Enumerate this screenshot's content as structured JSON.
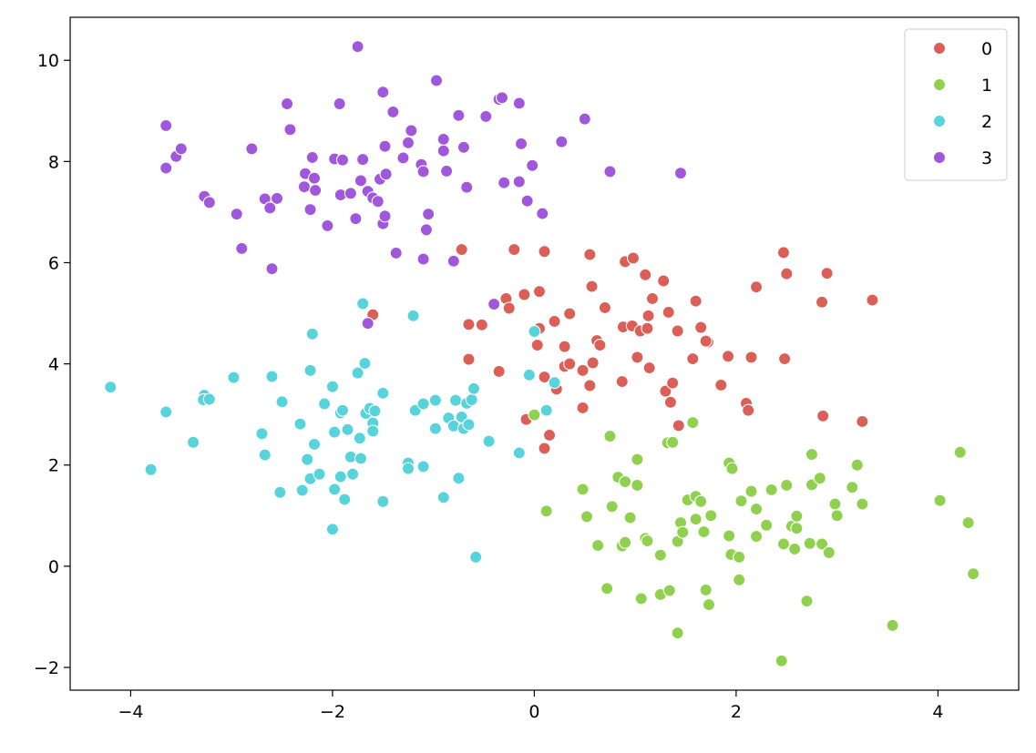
{
  "chart_data": {
    "type": "scatter",
    "xlim": [
      -4.6,
      4.8
    ],
    "ylim": [
      -2.45,
      10.85
    ],
    "x_ticks": [
      -4,
      -2,
      0,
      2,
      4
    ],
    "y_ticks": [
      -2,
      0,
      2,
      4,
      6,
      8,
      10
    ],
    "x_tick_labels": [
      "−4",
      "−2",
      "0",
      "2",
      "4"
    ],
    "y_tick_labels": [
      "−2",
      "0",
      "2",
      "4",
      "6",
      "8",
      "10"
    ],
    "grid": false,
    "legend_position": "top-right",
    "series": [
      {
        "name": "0",
        "color": "#db5f57",
        "points": [
          [
            -1.6,
            4.97
          ],
          [
            -0.72,
            6.26
          ],
          [
            -0.65,
            4.78
          ],
          [
            -0.52,
            4.77
          ],
          [
            -0.65,
            4.09
          ],
          [
            -0.35,
            3.85
          ],
          [
            -0.28,
            5.29
          ],
          [
            -0.25,
            5.1
          ],
          [
            -0.2,
            6.26
          ],
          [
            -0.1,
            5.37
          ],
          [
            0.05,
            5.43
          ],
          [
            0.1,
            6.22
          ],
          [
            0.03,
            4.37
          ],
          [
            0.05,
            4.7
          ],
          [
            0.1,
            3.74
          ],
          [
            0.2,
            4.84
          ],
          [
            0.22,
            3.5
          ],
          [
            0.3,
            4.34
          ],
          [
            0.35,
            4.99
          ],
          [
            0.3,
            3.95
          ],
          [
            0.35,
            4.0
          ],
          [
            0.48,
            3.87
          ],
          [
            0.48,
            3.13
          ],
          [
            0.55,
            6.16
          ],
          [
            0.57,
            5.53
          ],
          [
            0.55,
            3.57
          ],
          [
            0.58,
            4.02
          ],
          [
            0.62,
            4.46
          ],
          [
            0.65,
            4.37
          ],
          [
            0.7,
            5.11
          ],
          [
            0.88,
            4.73
          ],
          [
            0.9,
            6.02
          ],
          [
            0.98,
            6.09
          ],
          [
            0.97,
            4.75
          ],
          [
            0.87,
            3.65
          ],
          [
            1.02,
            4.13
          ],
          [
            1.05,
            4.65
          ],
          [
            1.1,
            5.76
          ],
          [
            1.12,
            4.7
          ],
          [
            1.13,
            4.95
          ],
          [
            1.17,
            5.29
          ],
          [
            1.14,
            3.92
          ],
          [
            1.28,
            5.64
          ],
          [
            1.3,
            3.46
          ],
          [
            1.33,
            5.02
          ],
          [
            1.35,
            3.24
          ],
          [
            1.37,
            3.62
          ],
          [
            1.42,
            4.65
          ],
          [
            1.43,
            2.78
          ],
          [
            1.57,
            4.1
          ],
          [
            1.6,
            5.24
          ],
          [
            1.65,
            4.72
          ],
          [
            1.72,
            4.43
          ],
          [
            1.7,
            4.45
          ],
          [
            1.85,
            3.58
          ],
          [
            1.92,
            4.15
          ],
          [
            2.1,
            3.22
          ],
          [
            2.12,
            3.08
          ],
          [
            2.15,
            4.13
          ],
          [
            2.2,
            5.52
          ],
          [
            2.47,
            6.2
          ],
          [
            2.5,
            5.78
          ],
          [
            2.48,
            4.1
          ],
          [
            2.9,
            5.79
          ],
          [
            2.85,
            5.22
          ],
          [
            2.86,
            2.97
          ],
          [
            3.25,
            2.86
          ],
          [
            3.35,
            5.26
          ],
          [
            -0.08,
            2.9
          ],
          [
            0.1,
            2.33
          ],
          [
            0.15,
            2.59
          ]
        ]
      },
      {
        "name": "1",
        "color": "#8fd14f",
        "points": [
          [
            0.0,
            2.99
          ],
          [
            0.12,
            1.09
          ],
          [
            0.48,
            1.52
          ],
          [
            0.52,
            0.98
          ],
          [
            0.63,
            0.41
          ],
          [
            0.72,
            -0.44
          ],
          [
            0.75,
            2.57
          ],
          [
            0.77,
            1.18
          ],
          [
            0.83,
            1.76
          ],
          [
            0.87,
            0.4
          ],
          [
            0.9,
            0.47
          ],
          [
            0.9,
            1.67
          ],
          [
            0.95,
            0.96
          ],
          [
            1.02,
            2.11
          ],
          [
            1.02,
            1.6
          ],
          [
            1.06,
            -0.64
          ],
          [
            1.1,
            0.55
          ],
          [
            1.12,
            0.5
          ],
          [
            1.25,
            0.22
          ],
          [
            1.25,
            -0.56
          ],
          [
            1.32,
            2.44
          ],
          [
            1.34,
            -0.48
          ],
          [
            1.37,
            2.45
          ],
          [
            1.42,
            -1.32
          ],
          [
            1.42,
            0.49
          ],
          [
            1.45,
            0.86
          ],
          [
            1.47,
            0.67
          ],
          [
            1.52,
            1.31
          ],
          [
            1.57,
            2.84
          ],
          [
            1.6,
            0.93
          ],
          [
            1.6,
            1.38
          ],
          [
            1.65,
            1.28
          ],
          [
            1.68,
            0.68
          ],
          [
            1.7,
            -0.47
          ],
          [
            1.73,
            -0.76
          ],
          [
            1.75,
            1.0
          ],
          [
            1.93,
            2.04
          ],
          [
            1.93,
            0.6
          ],
          [
            1.95,
            0.23
          ],
          [
            1.96,
            1.93
          ],
          [
            2.03,
            0.18
          ],
          [
            2.03,
            -0.27
          ],
          [
            2.05,
            1.29
          ],
          [
            2.15,
            1.48
          ],
          [
            2.2,
            1.13
          ],
          [
            2.2,
            0.59
          ],
          [
            2.3,
            0.81
          ],
          [
            2.35,
            1.51
          ],
          [
            2.45,
            -1.87
          ],
          [
            2.47,
            0.44
          ],
          [
            2.5,
            1.6
          ],
          [
            2.55,
            0.79
          ],
          [
            2.6,
            0.75
          ],
          [
            2.6,
            0.99
          ],
          [
            2.58,
            0.34
          ],
          [
            2.7,
            -0.69
          ],
          [
            2.73,
            0.45
          ],
          [
            2.75,
            1.61
          ],
          [
            2.75,
            2.21
          ],
          [
            2.83,
            1.74
          ],
          [
            2.85,
            0.44
          ],
          [
            2.92,
            0.27
          ],
          [
            2.98,
            1.23
          ],
          [
            3.0,
            1.0
          ],
          [
            3.15,
            1.56
          ],
          [
            3.2,
            2.0
          ],
          [
            3.25,
            1.23
          ],
          [
            3.55,
            -1.17
          ],
          [
            4.02,
            1.3
          ],
          [
            4.22,
            2.25
          ],
          [
            4.3,
            0.86
          ],
          [
            4.35,
            -0.15
          ]
        ]
      },
      {
        "name": "2",
        "color": "#57d3db",
        "points": [
          [
            -4.2,
            3.54
          ],
          [
            -3.8,
            1.91
          ],
          [
            -3.65,
            3.05
          ],
          [
            -3.38,
            2.45
          ],
          [
            -3.27,
            3.38
          ],
          [
            -3.28,
            3.29
          ],
          [
            -3.22,
            3.3
          ],
          [
            -2.98,
            3.73
          ],
          [
            -2.7,
            2.62
          ],
          [
            -2.67,
            2.2
          ],
          [
            -2.6,
            3.75
          ],
          [
            -2.52,
            1.46
          ],
          [
            -2.5,
            3.25
          ],
          [
            -2.32,
            2.81
          ],
          [
            -2.3,
            1.5
          ],
          [
            -2.25,
            2.11
          ],
          [
            -2.22,
            3.87
          ],
          [
            -2.22,
            1.73
          ],
          [
            -2.2,
            4.59
          ],
          [
            -2.18,
            2.41
          ],
          [
            -2.13,
            1.82
          ],
          [
            -2.08,
            3.21
          ],
          [
            -2.0,
            3.55
          ],
          [
            -1.98,
            2.65
          ],
          [
            -1.98,
            1.52
          ],
          [
            -2.0,
            0.73
          ],
          [
            -1.92,
            3.03
          ],
          [
            -1.9,
            3.08
          ],
          [
            -1.92,
            1.77
          ],
          [
            -1.88,
            1.32
          ],
          [
            -1.85,
            2.7
          ],
          [
            -1.82,
            2.16
          ],
          [
            -1.8,
            1.82
          ],
          [
            -1.75,
            3.82
          ],
          [
            -1.72,
            2.13
          ],
          [
            -1.73,
            2.53
          ],
          [
            -1.7,
            5.19
          ],
          [
            -1.68,
            4.01
          ],
          [
            -1.67,
            3.02
          ],
          [
            -1.63,
            3.12
          ],
          [
            -1.6,
            2.83
          ],
          [
            -1.6,
            2.67
          ],
          [
            -1.58,
            3.07
          ],
          [
            -1.5,
            3.42
          ],
          [
            -1.5,
            1.28
          ],
          [
            -1.2,
            4.95
          ],
          [
            -1.18,
            3.08
          ],
          [
            -1.1,
            3.21
          ],
          [
            -1.1,
            1.97
          ],
          [
            -1.25,
            2.04
          ],
          [
            -1.25,
            1.93
          ],
          [
            -0.98,
            3.28
          ],
          [
            -0.98,
            2.72
          ],
          [
            -0.9,
            1.36
          ],
          [
            -0.85,
            2.93
          ],
          [
            -0.8,
            2.77
          ],
          [
            -0.78,
            3.28
          ],
          [
            -0.75,
            1.74
          ],
          [
            -0.72,
            2.95
          ],
          [
            -0.7,
            2.72
          ],
          [
            -0.67,
            3.22
          ],
          [
            -0.65,
            2.8
          ],
          [
            -0.62,
            3.29
          ],
          [
            -0.6,
            3.51
          ],
          [
            -0.58,
            0.18
          ],
          [
            -0.45,
            2.47
          ],
          [
            -0.15,
            2.24
          ],
          [
            -0.05,
            3.78
          ],
          [
            0.0,
            4.64
          ],
          [
            0.12,
            3.08
          ],
          [
            0.2,
            3.63
          ]
        ]
      },
      {
        "name": "3",
        "color": "#a157db",
        "points": [
          [
            -3.65,
            8.71
          ],
          [
            -3.65,
            7.87
          ],
          [
            -3.55,
            8.1
          ],
          [
            -3.5,
            8.25
          ],
          [
            -3.27,
            7.31
          ],
          [
            -3.22,
            7.19
          ],
          [
            -2.95,
            6.96
          ],
          [
            -2.9,
            6.28
          ],
          [
            -2.8,
            8.25
          ],
          [
            -2.67,
            7.26
          ],
          [
            -2.62,
            7.08
          ],
          [
            -2.6,
            5.88
          ],
          [
            -2.55,
            7.27
          ],
          [
            -2.45,
            9.14
          ],
          [
            -2.42,
            8.63
          ],
          [
            -2.28,
            7.5
          ],
          [
            -2.27,
            7.76
          ],
          [
            -2.22,
            7.05
          ],
          [
            -2.2,
            8.08
          ],
          [
            -2.18,
            7.67
          ],
          [
            -2.17,
            7.43
          ],
          [
            -2.05,
            6.73
          ],
          [
            -1.98,
            8.05
          ],
          [
            -1.93,
            9.14
          ],
          [
            -1.92,
            7.34
          ],
          [
            -1.9,
            8.03
          ],
          [
            -1.82,
            7.37
          ],
          [
            -1.77,
            6.87
          ],
          [
            -1.75,
            10.27
          ],
          [
            -1.72,
            7.62
          ],
          [
            -1.7,
            8.04
          ],
          [
            -1.65,
            7.41
          ],
          [
            -1.6,
            7.28
          ],
          [
            -1.55,
            7.21
          ],
          [
            -1.53,
            7.65
          ],
          [
            -1.5,
            9.37
          ],
          [
            -1.5,
            6.77
          ],
          [
            -1.48,
            8.3
          ],
          [
            -1.47,
            7.75
          ],
          [
            -1.48,
            6.92
          ],
          [
            -1.4,
            8.98
          ],
          [
            -1.37,
            6.19
          ],
          [
            -1.3,
            8.07
          ],
          [
            -1.25,
            8.37
          ],
          [
            -1.22,
            8.61
          ],
          [
            -1.12,
            7.94
          ],
          [
            -1.1,
            7.8
          ],
          [
            -1.1,
            6.07
          ],
          [
            -1.07,
            6.65
          ],
          [
            -1.05,
            6.96
          ],
          [
            -0.97,
            9.6
          ],
          [
            -0.9,
            8.21
          ],
          [
            -0.9,
            8.44
          ],
          [
            -0.87,
            7.81
          ],
          [
            -0.8,
            6.03
          ],
          [
            -0.75,
            8.91
          ],
          [
            -0.7,
            8.28
          ],
          [
            -0.67,
            7.49
          ],
          [
            -0.48,
            8.89
          ],
          [
            -0.4,
            5.18
          ],
          [
            -0.35,
            9.23
          ],
          [
            -0.32,
            9.26
          ],
          [
            -0.3,
            7.58
          ],
          [
            -0.15,
            9.15
          ],
          [
            -0.15,
            7.6
          ],
          [
            -0.13,
            8.35
          ],
          [
            -0.07,
            7.22
          ],
          [
            -0.02,
            7.92
          ],
          [
            0.08,
            6.97
          ],
          [
            0.27,
            8.39
          ],
          [
            0.5,
            8.84
          ],
          [
            0.75,
            7.8
          ],
          [
            1.45,
            7.77
          ],
          [
            -1.65,
            4.8
          ]
        ]
      }
    ]
  }
}
